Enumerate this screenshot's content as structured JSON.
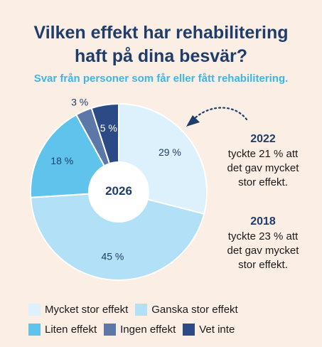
{
  "chart_data": {
    "type": "pie",
    "title": [
      "Vilken effekt har rehabilitering",
      "haft på dina besvär?"
    ],
    "subtitle": "Svar från personer som får eller fått rehabilitering.",
    "center_label": "2026",
    "categories": [
      "Mycket stor effekt",
      "Ganska stor effekt",
      "Liten effekt",
      "Ingen effekt",
      "Vet inte"
    ],
    "values": [
      29,
      45,
      18,
      3,
      5
    ],
    "value_labels": [
      "29 %",
      "45 %",
      "18 %",
      "3 %",
      "5 %"
    ],
    "colors": [
      "#dcf1fb",
      "#b2e0f6",
      "#5fc3ec",
      "#5b78a8",
      "#2c4a85"
    ],
    "donut": true,
    "legend_placement": "bottom"
  },
  "notes": [
    {
      "year": "2022",
      "lines": [
        "tyckte 21 % att",
        "det gav mycket",
        "stor effekt."
      ]
    },
    {
      "year": "2018",
      "lines": [
        "tyckte 23 % att",
        "det gav mycket",
        "stor effekt."
      ]
    }
  ]
}
